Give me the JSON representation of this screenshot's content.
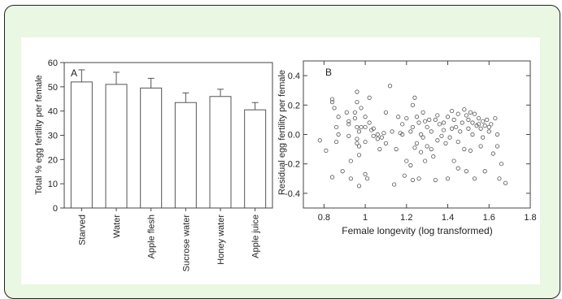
{
  "colors": {
    "frame_bg": "#eaf7e3",
    "frame_border": "#222222",
    "axis": "#444444",
    "marker": "#555555"
  },
  "chart_data": [
    {
      "type": "bar",
      "panel_label": "A",
      "ylabel": "Total % egg fertility per female",
      "xlabel": "",
      "ylim": [
        0,
        60
      ],
      "yticks": [
        0,
        10,
        20,
        30,
        40,
        50,
        60
      ],
      "categories": [
        "Starved",
        "Water",
        "Apple flesh",
        "Sucrose water",
        "Honey water",
        "Apple juice"
      ],
      "values": [
        52,
        51,
        49.5,
        43.5,
        46,
        40.5
      ],
      "errors": [
        5,
        5,
        4,
        4,
        3,
        3
      ]
    },
    {
      "type": "scatter",
      "panel_label": "B",
      "ylabel": "Residual egg fertility per female",
      "xlabel": "Female longevity (log transformed)",
      "xlim": [
        0.7,
        1.8
      ],
      "ylim": [
        -0.5,
        0.5
      ],
      "xticks": [
        0.8,
        1.0,
        1.2,
        1.4,
        1.6,
        1.8
      ],
      "xtick_labels": [
        "0.8",
        "1",
        "1.2",
        "1.4",
        "1.6",
        "1.8"
      ],
      "yticks": [
        -0.4,
        -0.2,
        0.0,
        0.2,
        0.4
      ],
      "ytick_labels": [
        "-0.4",
        "-0.2",
        "0.0",
        "0.2",
        "0.4"
      ],
      "points": [
        [
          0.78,
          -0.04
        ],
        [
          0.81,
          -0.11
        ],
        [
          0.84,
          0.24
        ],
        [
          0.84,
          0.22
        ],
        [
          0.85,
          0.18
        ],
        [
          0.84,
          -0.29
        ],
        [
          0.86,
          0.05
        ],
        [
          0.86,
          -0.05
        ],
        [
          0.87,
          0.0
        ],
        [
          0.87,
          0.12
        ],
        [
          0.89,
          -0.25
        ],
        [
          0.91,
          0.15
        ],
        [
          0.92,
          0.09
        ],
        [
          0.92,
          -0.01
        ],
        [
          0.92,
          0.07
        ],
        [
          0.93,
          -0.18
        ],
        [
          0.93,
          -0.3
        ],
        [
          0.95,
          0.15
        ],
        [
          0.95,
          0.11
        ],
        [
          0.96,
          0.29
        ],
        [
          0.96,
          0.22
        ],
        [
          0.96,
          0.05
        ],
        [
          0.96,
          -0.03
        ],
        [
          0.96,
          -0.06
        ],
        [
          0.97,
          0.02
        ],
        [
          0.97,
          -0.08
        ],
        [
          0.97,
          -0.14
        ],
        [
          0.97,
          -0.35
        ],
        [
          0.98,
          0.18
        ],
        [
          0.98,
          0.05
        ],
        [
          1.0,
          0.12
        ],
        [
          1.0,
          0.05
        ],
        [
          1.0,
          -0.05
        ],
        [
          1.0,
          -0.27
        ],
        [
          1.01,
          -0.3
        ],
        [
          1.02,
          0.25
        ],
        [
          1.02,
          0.08
        ],
        [
          1.03,
          0.03
        ],
        [
          1.04,
          -0.01
        ],
        [
          1.04,
          0.04
        ],
        [
          1.06,
          -0.03
        ],
        [
          1.06,
          0.0
        ],
        [
          1.07,
          -0.1
        ],
        [
          1.08,
          -0.02
        ],
        [
          1.09,
          0.01
        ],
        [
          1.1,
          0.15
        ],
        [
          1.1,
          -0.06
        ],
        [
          1.12,
          0.33
        ],
        [
          1.13,
          0.02
        ],
        [
          1.14,
          -0.34
        ],
        [
          1.15,
          -0.1
        ],
        [
          1.16,
          0.12
        ],
        [
          1.17,
          0.01
        ],
        [
          1.18,
          0.0
        ],
        [
          1.18,
          0.07
        ],
        [
          1.19,
          -0.28
        ],
        [
          1.2,
          -0.18
        ],
        [
          1.2,
          0.11
        ],
        [
          1.22,
          0.02
        ],
        [
          1.22,
          -0.21
        ],
        [
          1.23,
          0.05
        ],
        [
          1.23,
          0.2
        ],
        [
          1.23,
          -0.31
        ],
        [
          1.24,
          -0.09
        ],
        [
          1.24,
          0.25
        ],
        [
          1.25,
          0.12
        ],
        [
          1.25,
          -0.06
        ],
        [
          1.26,
          0.08
        ],
        [
          1.26,
          -0.3
        ],
        [
          1.27,
          -0.12
        ],
        [
          1.27,
          0.0
        ],
        [
          1.28,
          -0.02
        ],
        [
          1.28,
          0.15
        ],
        [
          1.29,
          0.09
        ],
        [
          1.29,
          -0.18
        ],
        [
          1.3,
          0.05
        ],
        [
          1.3,
          -0.08
        ],
        [
          1.31,
          0.1
        ],
        [
          1.32,
          -0.1
        ],
        [
          1.32,
          0.02
        ],
        [
          1.33,
          -0.15
        ],
        [
          1.34,
          -0.31
        ],
        [
          1.34,
          0.1
        ],
        [
          1.35,
          0.13
        ],
        [
          1.35,
          -0.04
        ],
        [
          1.36,
          0.07
        ],
        [
          1.37,
          -0.01
        ],
        [
          1.38,
          0.08
        ],
        [
          1.38,
          0.03
        ],
        [
          1.39,
          -0.06
        ],
        [
          1.4,
          0.12
        ],
        [
          1.4,
          -0.3
        ],
        [
          1.41,
          -0.02
        ],
        [
          1.42,
          0.16
        ],
        [
          1.42,
          0.04
        ],
        [
          1.43,
          -0.18
        ],
        [
          1.43,
          0.1
        ],
        [
          1.44,
          0.05
        ],
        [
          1.45,
          -0.05
        ],
        [
          1.45,
          -0.23
        ],
        [
          1.45,
          0.14
        ],
        [
          1.46,
          0.02
        ],
        [
          1.47,
          0.08
        ],
        [
          1.48,
          -0.1
        ],
        [
          1.48,
          0.17
        ],
        [
          1.49,
          0.13
        ],
        [
          1.49,
          -0.25
        ],
        [
          1.5,
          0.1
        ],
        [
          1.5,
          0.04
        ],
        [
          1.51,
          0.15
        ],
        [
          1.51,
          -0.11
        ],
        [
          1.52,
          0.08
        ],
        [
          1.52,
          0.0
        ],
        [
          1.53,
          0.14
        ],
        [
          1.53,
          -0.3
        ],
        [
          1.54,
          0.06
        ],
        [
          1.55,
          0.11
        ],
        [
          1.55,
          0.07
        ],
        [
          1.56,
          0.04
        ],
        [
          1.56,
          -0.08
        ],
        [
          1.57,
          0.09
        ],
        [
          1.57,
          -0.02
        ],
        [
          1.58,
          0.06
        ],
        [
          1.58,
          -0.25
        ],
        [
          1.59,
          0.1
        ],
        [
          1.6,
          0.05
        ],
        [
          1.6,
          0.02
        ],
        [
          1.61,
          0.07
        ],
        [
          1.62,
          -0.13
        ],
        [
          1.63,
          0.11
        ],
        [
          1.64,
          0.0
        ],
        [
          1.64,
          -0.08
        ],
        [
          1.65,
          -0.3
        ],
        [
          1.66,
          -0.2
        ],
        [
          1.68,
          -0.33
        ]
      ]
    }
  ]
}
